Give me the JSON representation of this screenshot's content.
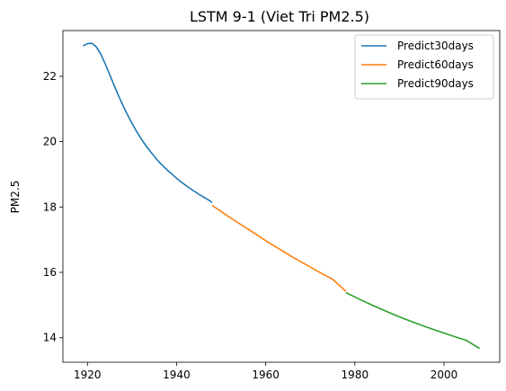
{
  "chart_data": {
    "type": "line",
    "title": "LSTM 9-1 (Viet Tri PM2.5)",
    "xlabel": "",
    "ylabel": "PM2.5",
    "xlim": [
      1914.5,
      2012.5
    ],
    "ylim": [
      13.25,
      23.4
    ],
    "xticks": [
      1920,
      1940,
      1960,
      1980,
      2000
    ],
    "yticks": [
      14,
      16,
      18,
      20,
      22
    ],
    "grid": false,
    "legend_position": "top-right",
    "series": [
      {
        "name": "Predict30days",
        "color": "#1f77b4",
        "x": [
          1919,
          1920,
          1921,
          1922,
          1923,
          1924,
          1925,
          1926,
          1927,
          1928,
          1929,
          1930,
          1931,
          1932,
          1933,
          1934,
          1935,
          1936,
          1937,
          1938,
          1939,
          1940,
          1941,
          1942,
          1943,
          1944,
          1945,
          1946,
          1947,
          1948
        ],
        "y": [
          22.93,
          23.0,
          23.01,
          22.9,
          22.68,
          22.38,
          22.05,
          21.72,
          21.4,
          21.1,
          20.82,
          20.56,
          20.32,
          20.1,
          19.9,
          19.72,
          19.55,
          19.39,
          19.25,
          19.12,
          19.0,
          18.88,
          18.77,
          18.67,
          18.57,
          18.48,
          18.39,
          18.31,
          18.23,
          18.14
        ]
      },
      {
        "name": "Predict60days",
        "color": "#ff7f0e",
        "x": [
          1948,
          1951,
          1954,
          1957,
          1960,
          1963,
          1966,
          1969,
          1972,
          1975,
          1978
        ],
        "y": [
          18.05,
          17.77,
          17.5,
          17.24,
          16.97,
          16.72,
          16.47,
          16.24,
          16.01,
          15.79,
          15.42
        ]
      },
      {
        "name": "Predict90days",
        "color": "#2ca02c",
        "x": [
          1978,
          1981,
          1984,
          1987,
          1990,
          1993,
          1996,
          1999,
          2002,
          2005,
          2008
        ],
        "y": [
          15.38,
          15.18,
          14.99,
          14.81,
          14.64,
          14.48,
          14.33,
          14.19,
          14.05,
          13.92,
          13.67
        ]
      }
    ]
  }
}
